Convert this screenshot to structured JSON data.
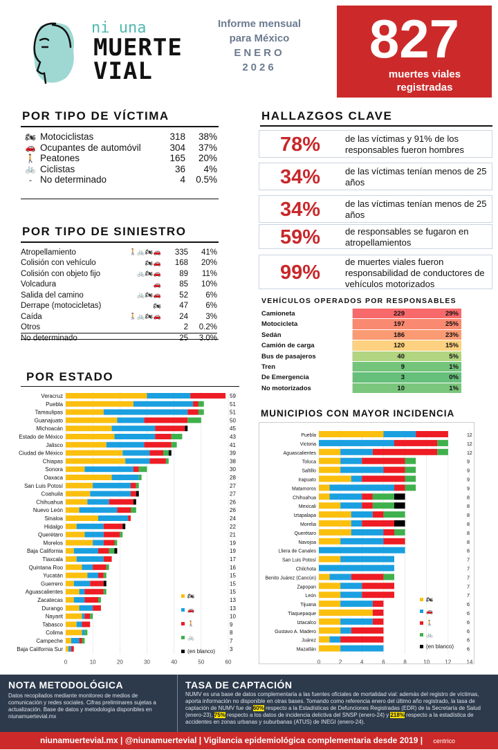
{
  "brand": {
    "logo_small": "ni una",
    "logo_big_1": "MUERTE",
    "logo_big_2": "VIAL"
  },
  "report": {
    "line1": "Informe mensual",
    "line2": "para México",
    "month": "ENERO",
    "year": "2026"
  },
  "total": {
    "value": "827",
    "label1": "muertes viales",
    "label2": "registradas"
  },
  "victims": {
    "title": "POR TIPO DE VÍCTIMA",
    "rows": [
      {
        "icon": "motorcycle-icon",
        "glyph": "🏍",
        "label": "Motociclistas",
        "n": "318",
        "p": "38%"
      },
      {
        "icon": "car-icon",
        "glyph": "🚗",
        "label": "Ocupantes de automóvil",
        "n": "304",
        "p": "37%"
      },
      {
        "icon": "pedestrian-icon",
        "glyph": "🚶",
        "label": "Peatones",
        "n": "165",
        "p": "20%"
      },
      {
        "icon": "bicycle-icon",
        "glyph": "🚲",
        "label": "Ciclistas",
        "n": "36",
        "p": "4%"
      },
      {
        "icon": "",
        "glyph": "-",
        "label": "No determinado",
        "n": "4",
        "p": "0.5%"
      }
    ]
  },
  "accidents": {
    "title": "POR TIPO DE SINIESTRO",
    "rows": [
      {
        "label": "Atropellamiento",
        "icons": [
          "pedestrian-icon",
          "bicycle-icon",
          "motorcycle-icon",
          "car-icon"
        ],
        "glyphs": "🚶 🚲 🏍 🚗",
        "n": "335",
        "p": "41%"
      },
      {
        "label": "Colisión con vehículo",
        "icons": [
          "motorcycle-icon",
          "car-icon"
        ],
        "glyphs": "🏍 🚗",
        "n": "168",
        "p": "20%"
      },
      {
        "label": "Colisión con objeto fijo",
        "icons": [
          "bicycle-icon",
          "motorcycle-icon",
          "car-icon"
        ],
        "glyphs": "🚲 🏍 🚗",
        "n": "89",
        "p": "11%"
      },
      {
        "label": "Volcadura",
        "icons": [
          "car-icon"
        ],
        "glyphs": "🚗",
        "n": "85",
        "p": "10%"
      },
      {
        "label": "Salida del camino",
        "icons": [
          "bicycle-icon",
          "motorcycle-icon",
          "car-icon"
        ],
        "glyphs": "🚲 🏍 🚗",
        "n": "52",
        "p": "6%"
      },
      {
        "label": "Derrape (motocicletas)",
        "icons": [
          "motorcycle-icon"
        ],
        "glyphs": "🏍",
        "n": "47",
        "p": "6%"
      },
      {
        "label": "Caída",
        "icons": [
          "pedestrian-icon",
          "bicycle-icon",
          "motorcycle-icon",
          "car-icon"
        ],
        "glyphs": "🚶 🚲 🏍 🚗",
        "n": "24",
        "p": "3%"
      },
      {
        "label": "Otros",
        "icons": [],
        "glyphs": "",
        "n": "2",
        "p": "0.2%"
      },
      {
        "label": "No determinado",
        "icons": [],
        "glyphs": "",
        "n": "25",
        "p": "3.0%"
      }
    ]
  },
  "findings": {
    "title": "HALLAZGOS CLAVE",
    "items": [
      {
        "pct": "78%",
        "text": "de las víctimas y 91% de los responsables fueron hombres"
      },
      {
        "pct": "34%",
        "text": "de las víctimas tenían menos de 25 años"
      },
      {
        "pct": "34%",
        "text": "de las víctimas tenían menos de 25 años"
      },
      {
        "pct": "59%",
        "text": "de responsables se fugaron en atropellamientos"
      },
      {
        "pct": "99%",
        "text": "de muertes viales fueron responsabilidad de conductores de vehículos motorizados"
      }
    ]
  },
  "vehicles": {
    "title": "VEHÍCULOS OPERADOS POR RESPONSABLES",
    "rows": [
      {
        "name": "Camioneta",
        "n": "229",
        "p": "29%",
        "color": "#f8696b"
      },
      {
        "name": "Motocicleta",
        "n": "197",
        "p": "25%",
        "color": "#f98970"
      },
      {
        "name": "Sedán",
        "n": "186",
        "p": "23%",
        "color": "#fa9a73"
      },
      {
        "name": "Camión de carga",
        "n": "120",
        "p": "15%",
        "color": "#fdd17f"
      },
      {
        "name": "Bus de pasajeros",
        "n": "40",
        "p": "5%",
        "color": "#b1d580"
      },
      {
        "name": "Tren",
        "n": "9",
        "p": "1%",
        "color": "#74c47c"
      },
      {
        "name": "De Emergencia",
        "n": "3",
        "p": "0%",
        "color": "#66bf7a"
      },
      {
        "name": "No motorizados",
        "n": "10",
        "p": "1%",
        "color": "#7ac67d"
      }
    ]
  },
  "colors": {
    "moto": "#fbbf0e",
    "auto": "#1aa0e0",
    "peaton": "#ee1c24",
    "ciclista": "#3fb14c",
    "blanco": "#000000",
    "accent": "#cc2a2a"
  },
  "chart_data": [
    {
      "type": "bar",
      "title": "POR ESTADO",
      "orientation": "horizontal",
      "stacked": true,
      "xlim": [
        0,
        60
      ],
      "xticks": [
        0,
        10,
        20,
        30,
        40,
        50,
        60
      ],
      "legend": [
        "🏍",
        "🚗",
        "🚶",
        "🚲",
        "(en blanco)"
      ],
      "categories": [
        "Veracruz",
        "Puebla",
        "Tamaulipas",
        "Guanajuato",
        "Michoacán",
        "Estado de México",
        "Jalisco",
        "Ciudad de México",
        "Chiapas",
        "Sonora",
        "Oaxaca",
        "San Luis Potosí",
        "Coahuila",
        "Chihuahua",
        "Nuevo León",
        "Sinaloa",
        "Hidalgo",
        "Querétaro",
        "Morelos",
        "Baja California",
        "Tlaxcala",
        "Quintana Roo",
        "Yucatán",
        "Guerrero",
        "Aguascalientes",
        "Zacatecas",
        "Durango",
        "Nayarit",
        "Tabasco",
        "Colima",
        "Campeche",
        "Baja California Sur"
      ],
      "totals": [
        "59",
        "51",
        "51",
        "50",
        "45",
        "43",
        "41",
        "39",
        "38",
        "30",
        "28",
        "27",
        "27",
        "26",
        "26",
        "24",
        "22",
        "21",
        "19",
        "19",
        "17",
        "16",
        "15",
        "15",
        "15",
        "13",
        "13",
        "10",
        "9",
        "8",
        "7",
        "3"
      ],
      "series": [
        {
          "name": "🏍",
          "values": [
            30,
            25,
            14,
            19,
            17,
            18,
            15,
            21,
            22,
            7,
            17,
            10,
            9,
            8,
            5,
            12,
            4,
            7,
            10,
            3,
            4,
            6,
            8,
            3,
            5,
            3,
            5,
            6,
            4,
            6,
            2,
            1
          ]
        },
        {
          "name": "🚗",
          "values": [
            16,
            22,
            31,
            10,
            16,
            15,
            14,
            10,
            9,
            18,
            10,
            14,
            15,
            8,
            14,
            11,
            10,
            7,
            4,
            9,
            10,
            4,
            4,
            6,
            2,
            4,
            5,
            1,
            2,
            1,
            3,
            1
          ]
        },
        {
          "name": "🚶",
          "values": [
            13,
            2,
            4,
            16,
            11,
            6,
            10,
            5,
            6,
            2,
            0,
            2,
            2,
            9,
            5,
            1,
            7,
            6,
            4,
            4,
            3,
            5,
            2,
            5,
            7,
            5,
            3,
            2,
            3,
            0,
            1,
            1
          ]
        },
        {
          "name": "🚲",
          "values": [
            0,
            2,
            2,
            5,
            0,
            4,
            2,
            2,
            1,
            3,
            1,
            1,
            0,
            0,
            2,
            0,
            0,
            1,
            1,
            2,
            0,
            1,
            1,
            0,
            1,
            1,
            0,
            1,
            0,
            1,
            1,
            0
          ]
        },
        {
          "name": "(en blanco)",
          "values": [
            0,
            0,
            0,
            0,
            1,
            0,
            0,
            1,
            0,
            0,
            0,
            0,
            1,
            1,
            0,
            0,
            1,
            0,
            0,
            1,
            0,
            0,
            0,
            1,
            0,
            0,
            0,
            0,
            0,
            0,
            0,
            0
          ]
        }
      ]
    },
    {
      "type": "bar",
      "title": "MUNICIPIOS CON MAYOR INCIDENCIA",
      "orientation": "horizontal",
      "stacked": true,
      "xlim": [
        0,
        14
      ],
      "xticks": [
        0,
        2,
        4,
        6,
        8,
        10,
        12,
        14
      ],
      "legend": [
        "🏍",
        "🚗",
        "🚶",
        "🚲",
        "(en blanco)"
      ],
      "categories": [
        "Puebla",
        "Victoria",
        "Aguascalientes",
        "Toluca",
        "Saltillo",
        "Irapuato",
        "Matamoros",
        "Chihuahua",
        "Mexicali",
        "Iztapalapa",
        "Morelia",
        "Querétaro",
        "Navojoa",
        "Lliera de Canales",
        "San Luis Potosí",
        "Chilchota",
        "Benito Juárez (Cancún)",
        "Zapopan",
        "León",
        "Tijuana",
        "Tlaquepaque",
        "Iztacalco",
        "Gustavo A. Madero",
        "Juárez",
        "Mazatlán"
      ],
      "totals": [
        "12",
        "12",
        "12",
        "9",
        "9",
        "9",
        "9",
        "8",
        "8",
        "8",
        "8",
        "8",
        "8",
        "8",
        "7",
        "7",
        "7",
        "7",
        "7",
        "6",
        "6",
        "6",
        "6",
        "6",
        "6"
      ],
      "series": [
        {
          "name": "🏍",
          "values": [
            6,
            0,
            2,
            2,
            2,
            3,
            1,
            1,
            2,
            3,
            3,
            3,
            2,
            0,
            2,
            0,
            1,
            2,
            2,
            2,
            5,
            2,
            2,
            1,
            2
          ]
        },
        {
          "name": "🚗",
          "values": [
            3,
            7,
            3,
            2,
            4,
            1,
            6,
            3,
            2,
            2,
            1,
            3,
            4,
            8,
            5,
            7,
            2,
            2,
            2,
            3,
            0,
            3,
            1,
            1,
            4
          ]
        },
        {
          "name": "🚶",
          "values": [
            3,
            4,
            6,
            4,
            2,
            4,
            1,
            1,
            1,
            1,
            3,
            1,
            2,
            0,
            0,
            0,
            3,
            3,
            3,
            1,
            1,
            1,
            3,
            4,
            0
          ]
        },
        {
          "name": "🚲",
          "values": [
            0,
            1,
            1,
            1,
            1,
            1,
            1,
            2,
            2,
            2,
            0,
            1,
            0,
            0,
            0,
            0,
            1,
            0,
            0,
            0,
            0,
            0,
            0,
            0,
            0
          ]
        },
        {
          "name": "(en blanco)",
          "values": [
            0,
            0,
            0,
            0,
            0,
            0,
            0,
            1,
            1,
            0,
            1,
            0,
            0,
            0,
            0,
            0,
            0,
            0,
            0,
            0,
            0,
            0,
            0,
            0,
            0
          ]
        }
      ]
    }
  ],
  "footer": {
    "nota_title": "NOTA METODOLÓGICA",
    "nota_text": "Datos recopilados mediante monitoreo de medios de comunicación y redes sociales. Cifras preliminares sujetas a actualización. Base de datos y metodología disponibles en niunamuertevial.mx",
    "tasa_title": "TASA DE CAPTACIÓN",
    "tasa_a": "NUMV es una base de datos complementaria a las fuentes oficiales de mortalidad vial: además del registro de víctimas, aporta información no disponible en otras bases. Tomando como referencia enero del último año registrado, la tasa de captación de NUMV fue de ",
    "tasa_h1": "60%",
    "tasa_b": " respecto a la Estadísticas de Defunciones Registradas (EDR) de la Secretaría de Salud (enero-23), ",
    "tasa_h2": "75%",
    "tasa_c": " respecto a los datos de incidencia delictiva del SNSP (enero-24) y ",
    "tasa_h3": "218%",
    "tasa_d": " respecto a la estadística de accidentes en zonas urbanas y suburbanas (ATUS) de INEGI (enero-24)."
  },
  "bottom": {
    "text": "niunamuertevial.mx  |  @niunamuertevial  |  Vigilancia epidemiológica complementaria desde 2019  |",
    "partner": "centrico"
  }
}
